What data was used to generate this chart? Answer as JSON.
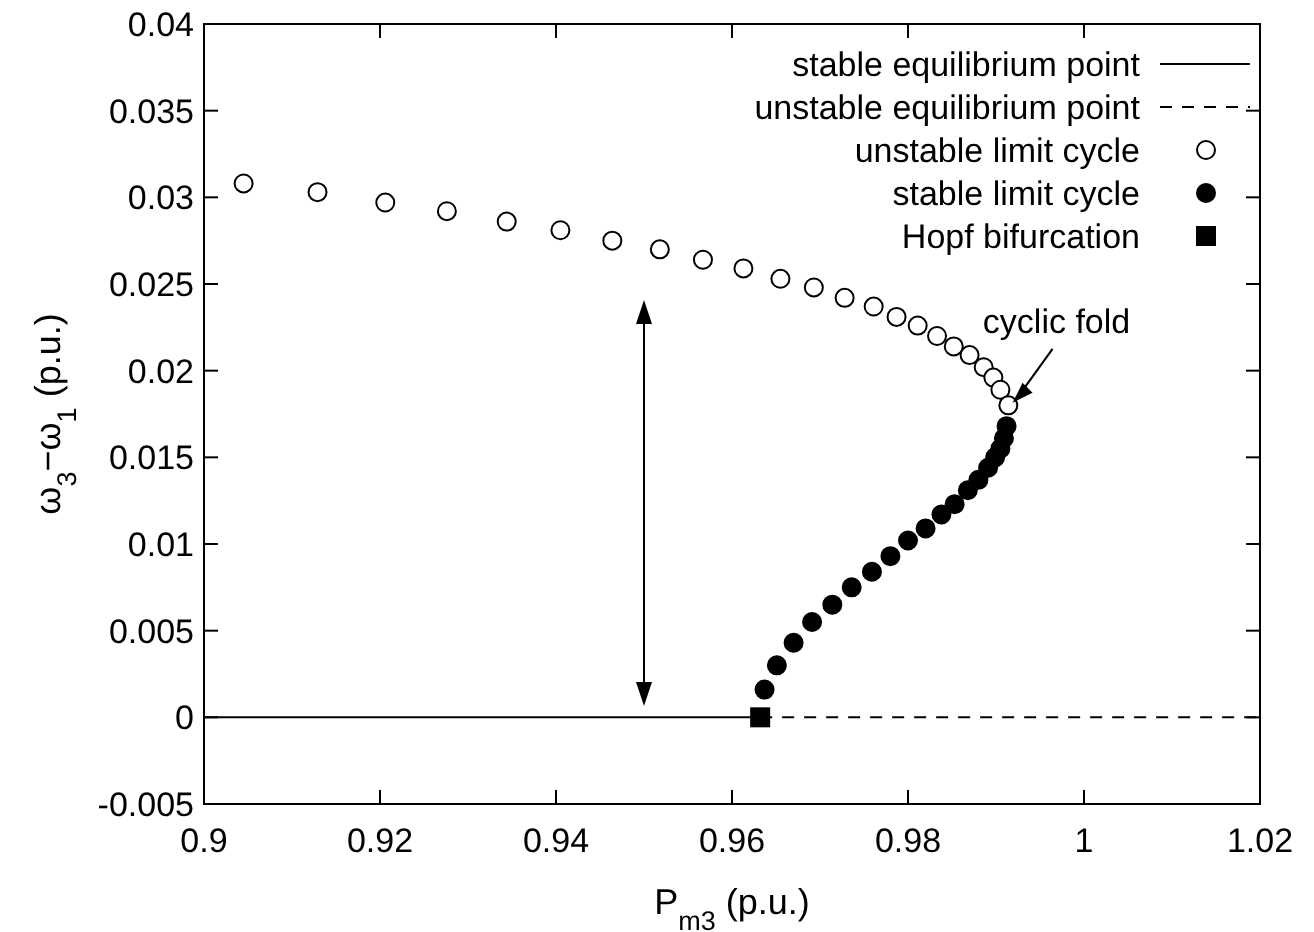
{
  "chart_data": {
    "type": "scatter",
    "xlabel": "P$_{m3}$ (p.u.)",
    "ylabel": "ω$_{3}$−ω$_{1}$ (p.u.)",
    "xlim": [
      0.9,
      1.02
    ],
    "xticks": [
      0.9,
      0.92,
      0.94,
      0.96,
      0.98,
      1,
      1.02
    ],
    "ylim": [
      -0.005,
      0.04
    ],
    "yticks": [
      -0.005,
      0,
      0.005,
      0.01,
      0.015,
      0.02,
      0.025,
      0.03,
      0.035,
      0.04
    ],
    "grid": false,
    "legend": "top right",
    "annotations": [
      {
        "text": "cyclic fold",
        "x": 0.9912,
        "y": 0.0178
      }
    ],
    "series": [
      {
        "name": "stable equilibrium point",
        "type": "line",
        "line_style": "solid",
        "marker": "none",
        "color": "#000000",
        "x": [
          0.9,
          0.9632
        ],
        "values": [
          0,
          0
        ]
      },
      {
        "name": "unstable equilibrium point",
        "type": "line",
        "line_style": "dashed",
        "marker": "none",
        "color": "#000000",
        "x": [
          0.9632,
          1.02
        ],
        "values": [
          0,
          0
        ]
      },
      {
        "name": "unstable limit cycle",
        "type": "scatter",
        "marker": "circle",
        "color": "#ffffff",
        "x": [
          0.9045,
          0.9129,
          0.9206,
          0.9276,
          0.9344,
          0.9405,
          0.9464,
          0.9518,
          0.9567,
          0.9613,
          0.9655,
          0.9693,
          0.9728,
          0.9761,
          0.9787,
          0.9811,
          0.9833,
          0.9852,
          0.987,
          0.9886,
          0.9897,
          0.9905,
          0.9911,
          0.9914
        ],
        "values": [
          0.0308,
          0.0303,
          0.0297,
          0.0292,
          0.0286,
          0.0281,
          0.0275,
          0.027,
          0.0264,
          0.0259,
          0.0253,
          0.0248,
          0.0242,
          0.0237,
          0.0231,
          0.0226,
          0.022,
          0.0214,
          0.0209,
          0.0202,
          0.0196,
          0.0189,
          null,
          0.018
        ]
      },
      {
        "name": "stable limit cycle",
        "type": "scatter",
        "marker": "circle",
        "color": "#000000",
        "x": [
          0.9637,
          0.9651,
          0.967,
          0.9691,
          0.9714,
          0.9736,
          0.9759,
          0.978,
          0.98,
          0.982,
          0.9838,
          0.9853,
          0.9868,
          0.988,
          0.9891,
          0.9899,
          0.9905,
          0.9909,
          0.9912
        ],
        "values": [
          0.0016,
          0.003,
          0.0043,
          0.0055,
          0.0065,
          0.0075,
          0.0084,
          0.0093,
          0.0102,
          0.0109,
          0.0117,
          0.0123,
          0.0131,
          0.0137,
          0.0144,
          0.015,
          0.0155,
          0.0161,
          0.0168
        ]
      },
      {
        "name": "Hopf bifurcation",
        "type": "scatter",
        "marker": "square",
        "color": "#000000",
        "x": [
          0.9632
        ],
        "values": [
          0
        ]
      }
    ]
  }
}
